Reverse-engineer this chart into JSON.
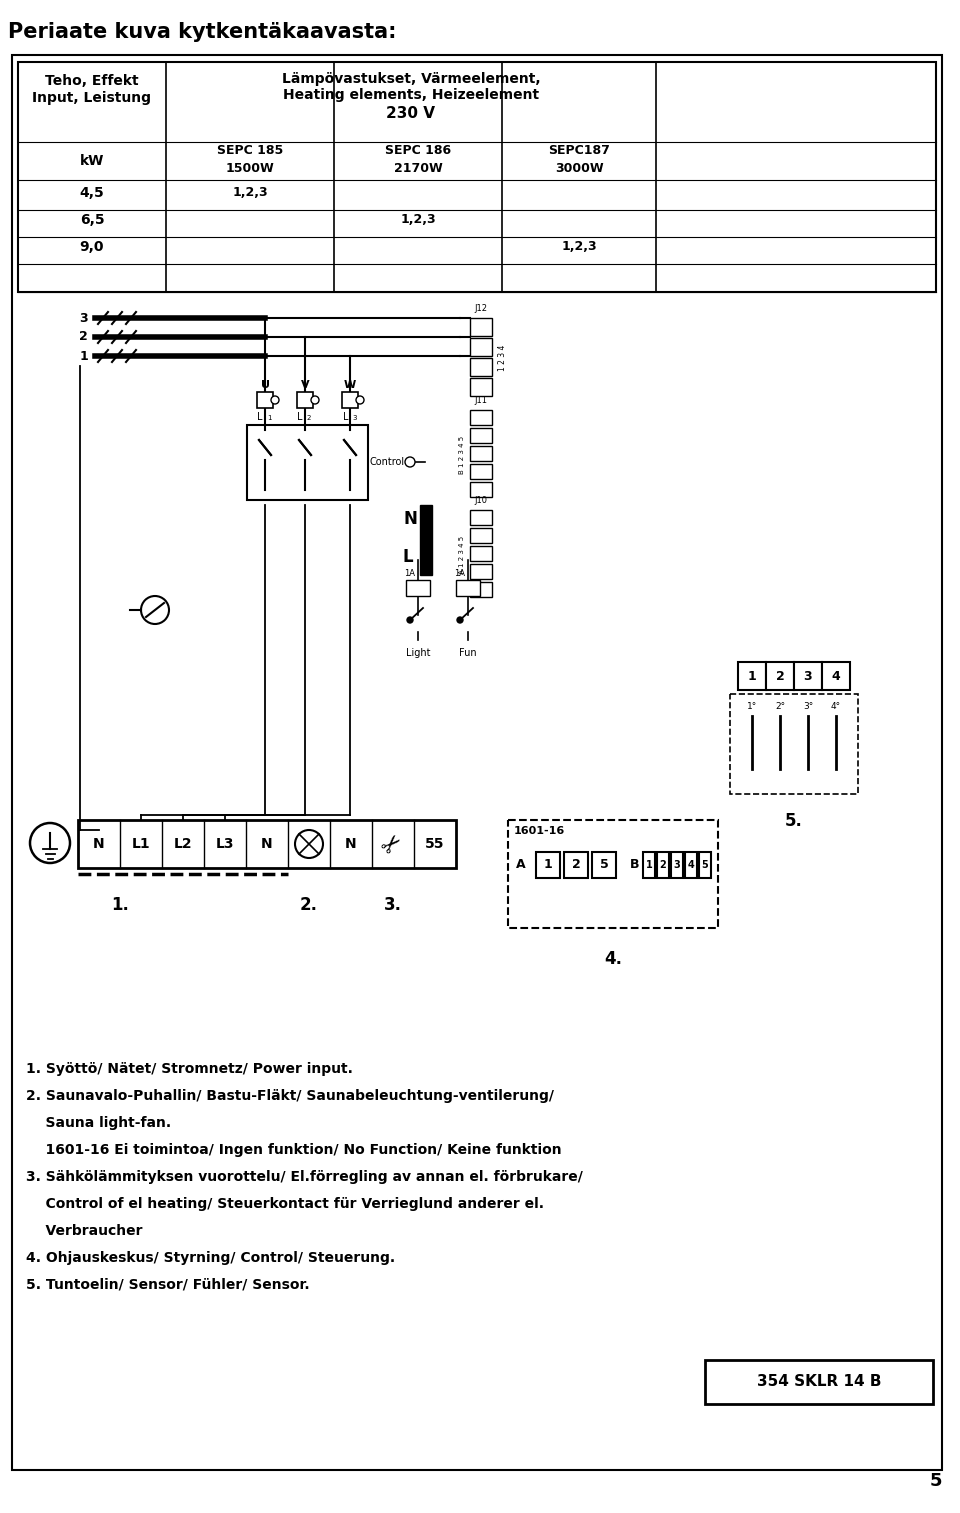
{
  "title": "Periaate kuva kytkentäkaavasta:",
  "page_number": "5",
  "bg_color": "#ffffff",
  "border_color": "#000000",
  "table": {
    "col1_header1": "Teho, Effekt",
    "col1_header2": "Input, Leistung",
    "col2_header1": "Lämpövastukset, Värmeelement,",
    "col2_header2": "Heating elements, Heizeelement",
    "col2_header3": "230 V",
    "sepc185": "SEPC 185",
    "sepc186": "SEPC 186",
    "sepc187": "SEPC187",
    "w1500": "1500W",
    "w2170": "2170W",
    "w3000": "3000W"
  },
  "annotations": [
    "1. Syöttö/ Nätet/ Stromnetz/ Power input.",
    "2. Saunavalo-Puhallin/ Bastu-Fläkt/ Saunabeleuchtung-ventilerung/",
    "    Sauna light-fan.",
    "    1601-16 Ei toimintoa/ Ingen funktion/ No Function/ Keine funktion",
    "3. Sähkölämmityksen vuorottelu/ El.förregling av annan el. förbrukare/",
    "    Control of el heating/ Steuerkontact für Verrieglund anderer el.",
    "    Verbraucher",
    "4. Ohjauskeskus/ Styrning/ Control/ Steuerung.",
    "5. Tuntoelin/ Sensor/ Fühler/ Sensor."
  ],
  "ref_number": "354 SKLR 14 B"
}
